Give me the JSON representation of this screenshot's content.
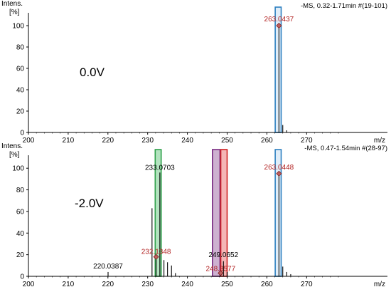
{
  "chart_data": [
    {
      "type": "bar",
      "panel": "top",
      "ylabel_line1": "Intens.",
      "ylabel_line2": "[%]",
      "xlabel": "m/z",
      "header": "-MS, 0.32-1.71min #(19-101)",
      "condition": "0.0V",
      "xlim": [
        200,
        278
      ],
      "ylim": [
        0,
        112
      ],
      "xticks": [
        "200",
        "210",
        "220",
        "230",
        "240",
        "250",
        "260",
        "270"
      ],
      "yticks": [
        "0",
        "20",
        "40",
        "60",
        "80",
        "100"
      ],
      "peaks": [
        {
          "x": 263.04,
          "y": 100
        },
        {
          "x": 264.0,
          "y": 7
        },
        {
          "x": 265.0,
          "y": 2
        }
      ],
      "annotations": [
        {
          "x": 263.04,
          "y": 100,
          "text": "263.0437",
          "color": "#b22222"
        }
      ],
      "highlights": [
        {
          "x0": 262.1,
          "x1": 263.6,
          "fill": "#dbeaf7",
          "stroke": "#2d7fc0"
        }
      ]
    },
    {
      "type": "bar",
      "panel": "bottom",
      "ylabel_line1": "Intens.",
      "ylabel_line2": "[%]",
      "xlabel": "m/z",
      "header": "-MS, 0.47-1.54min #(28-97)",
      "condition": "-2.0V",
      "xlim": [
        200,
        278
      ],
      "ylim": [
        0,
        112
      ],
      "xticks": [
        "200",
        "210",
        "220",
        "230",
        "240",
        "250",
        "260",
        "270"
      ],
      "yticks": [
        "0",
        "20",
        "40",
        "60",
        "80",
        "100"
      ],
      "peaks": [
        {
          "x": 220.04,
          "y": 4
        },
        {
          "x": 231.1,
          "y": 63
        },
        {
          "x": 232.13,
          "y": 18
        },
        {
          "x": 233.07,
          "y": 96
        },
        {
          "x": 234.1,
          "y": 15
        },
        {
          "x": 235.0,
          "y": 13
        },
        {
          "x": 236.0,
          "y": 10
        },
        {
          "x": 237.0,
          "y": 3
        },
        {
          "x": 248.36,
          "y": 3
        },
        {
          "x": 249.07,
          "y": 14
        },
        {
          "x": 250.0,
          "y": 4
        },
        {
          "x": 263.04,
          "y": 95
        },
        {
          "x": 264.0,
          "y": 9
        },
        {
          "x": 265.0,
          "y": 4
        },
        {
          "x": 266.0,
          "y": 2
        }
      ],
      "annotations": [
        {
          "x": 220.04,
          "y": 4,
          "text": "220.0387",
          "color": "#000000"
        },
        {
          "x": 233.07,
          "y": 96,
          "text": "233.0703",
          "color": "#000000"
        },
        {
          "x": 232.13,
          "y": 18,
          "text": "232.1348",
          "color": "#b22222"
        },
        {
          "x": 249.07,
          "y": 14,
          "text": "249.0652",
          "color": "#000000"
        },
        {
          "x": 248.36,
          "y": 3,
          "text": "248.3577",
          "color": "#b22222"
        },
        {
          "x": 263.04,
          "y": 95,
          "text": "263.0448",
          "color": "#b22222"
        }
      ],
      "highlights": [
        {
          "x0": 231.9,
          "x1": 233.4,
          "fill": "#a6deb4",
          "stroke": "#2ea04a"
        },
        {
          "x0": 246.3,
          "x1": 248.2,
          "fill": "#c4a3c8",
          "stroke": "#7a2b83"
        },
        {
          "x0": 248.4,
          "x1": 250.0,
          "fill": "#f2a9a9",
          "stroke": "#d02020"
        },
        {
          "x0": 262.1,
          "x1": 263.6,
          "fill": "#dbeaf7",
          "stroke": "#2d7fc0"
        }
      ]
    }
  ]
}
